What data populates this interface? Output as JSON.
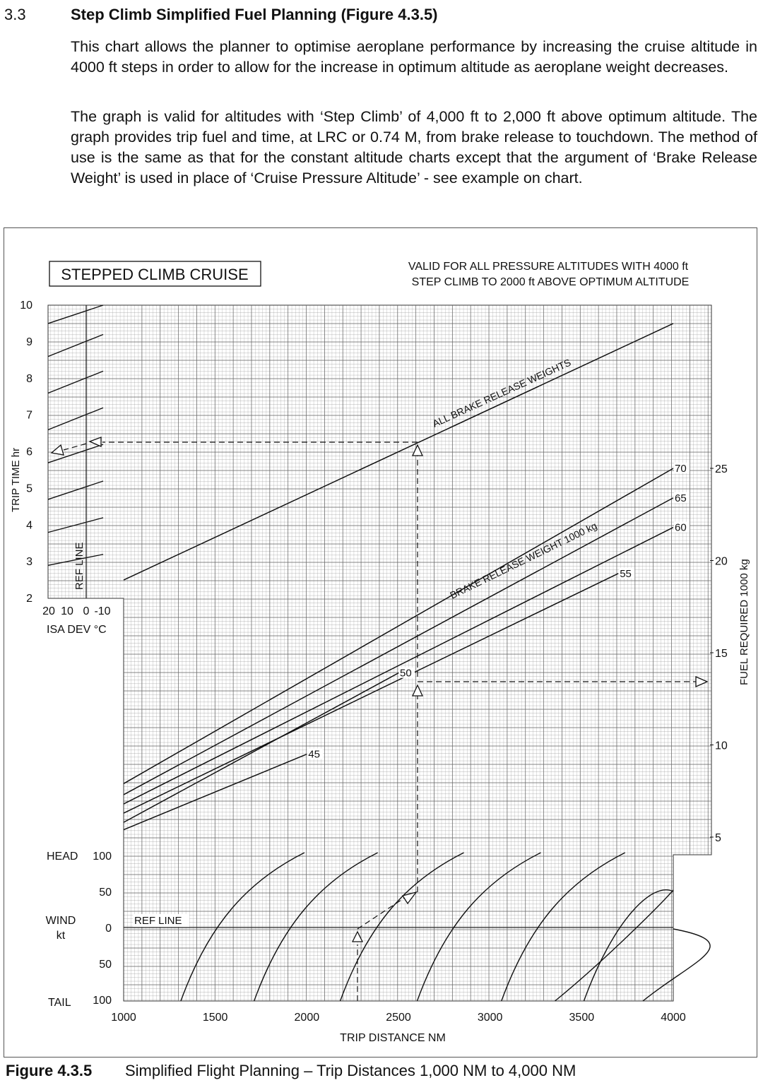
{
  "section": {
    "number": "3.3",
    "title": "Step Climb Simplified Fuel Planning (Figure 4.3.5)",
    "paragraph1": "This chart allows the planner to optimise aeroplane performance by increasing the cruise altitude in 4000 ft steps in order to allow for the increase in optimum altitude as aeroplane weight decreases.",
    "paragraph2": "The graph is valid for altitudes with ‘Step Climb’ of 4,000 ft to 2,000 ft above optimum altitude. The graph provides trip fuel and time, at LRC or 0.74 M, from brake release to touchdown. The method of use is the same as that for the constant altitude charts except that the argument of ‘Brake Release Weight’ is used in place of ‘Cruise Pressure Altitude’ - see example on chart."
  },
  "figure": {
    "label": "Figure 4.3.5",
    "caption": "Simplified Flight Planning – Trip Distances 1,000 NM to 4,000 NM"
  },
  "chart_data": {
    "type": "line",
    "title": "STEPPED CLIMB CRUISE",
    "subtitle_lines": [
      "VALID FOR ALL PRESSURE ALTITUDES WITH 4000 ft",
      "STEP CLIMB TO 2000 ft ABOVE OPTIMUM ALTITUDE"
    ],
    "xlabel": "TRIP DISTANCE  NM",
    "x_ticks": [
      "1000",
      "1500",
      "2000",
      "2500",
      "3000",
      "3500",
      "4000"
    ],
    "xlim": [
      1000,
      4000
    ],
    "grid": true,
    "time_panel": {
      "ylabel": "TRIP TIME  hr",
      "y_ticks": [
        "10",
        "9",
        "8",
        "7",
        "6",
        "5",
        "4",
        "3",
        "2"
      ],
      "ylim": [
        2,
        10
      ],
      "curve_label": "ALL BRAKE RELEASE WEIGHTS",
      "curve": {
        "x": [
          1000,
          4000
        ],
        "y": [
          2.5,
          9.5
        ]
      }
    },
    "isa_panel": {
      "xlabel": "ISA DEV °C",
      "x_ticks": [
        "20",
        "10",
        "0",
        "-10"
      ],
      "ref_label": "REF LINE",
      "guide_lines": [
        {
          "left": 9.5,
          "right": 10.0
        },
        {
          "left": 8.6,
          "right": 9.2
        },
        {
          "left": 7.6,
          "right": 8.2
        },
        {
          "left": 6.6,
          "right": 7.2
        },
        {
          "left": 5.7,
          "right": 6.2
        },
        {
          "left": 4.7,
          "right": 5.2
        },
        {
          "left": 3.8,
          "right": 4.2
        },
        {
          "left": 2.9,
          "right": 3.2
        }
      ]
    },
    "fuel_panel": {
      "ylabel": "FUEL REQUIRED  1000 kg",
      "y_ticks": [
        "25",
        "20",
        "15",
        "10",
        "5"
      ],
      "ylim": [
        4.5,
        29
      ],
      "weight_label": "BRAKE RELEASE WEIGHT  1000 kg",
      "series": [
        {
          "name": "70",
          "x": [
            1000,
            4000
          ],
          "y": [
            7.9,
            25.0
          ]
        },
        {
          "name": "65",
          "x": [
            1000,
            4000
          ],
          "y": [
            7.3,
            23.4
          ]
        },
        {
          "name": "60",
          "x": [
            1000,
            4000
          ],
          "y": [
            6.8,
            21.8
          ]
        },
        {
          "name": "55",
          "x": [
            1000,
            3700
          ],
          "y": [
            6.3,
            19.3
          ]
        },
        {
          "name": "50",
          "x": [
            1000,
            2500
          ],
          "y": [
            5.8,
            13.9
          ]
        },
        {
          "name": "45",
          "x": [
            1000,
            2000
          ],
          "y": [
            5.4,
            9.5
          ]
        }
      ]
    },
    "wind_panel": {
      "ylabel_lines": [
        "WIND",
        "kt"
      ],
      "y_ticks": [
        "100",
        "50",
        "0",
        "50",
        "100"
      ],
      "head_label": "HEAD",
      "tail_label": "TAIL",
      "ref_label": "REF LINE",
      "ylim": [
        -100,
        100
      ]
    },
    "example": {
      "trip_distance_nm": 2300,
      "wind_kt": "50 HEAD",
      "corrected_distance_nm": 2610,
      "fuel_required_1000kg": 13.5,
      "trip_time_hr": 6.0
    }
  }
}
